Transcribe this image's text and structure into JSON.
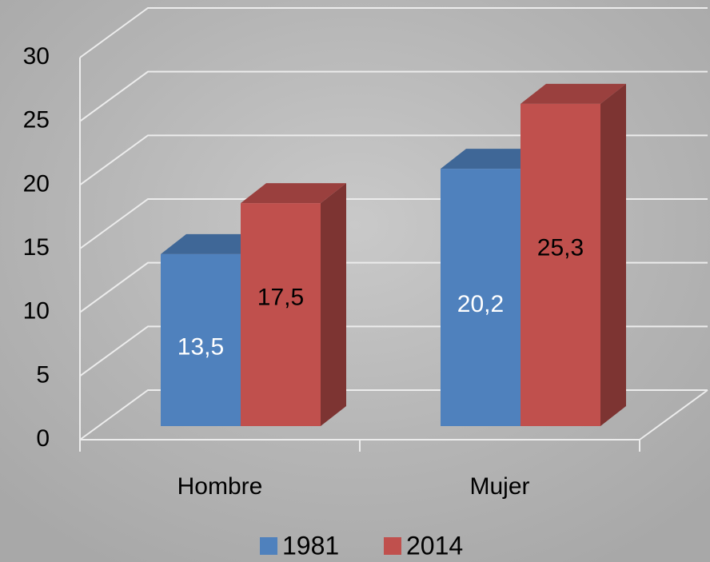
{
  "chart_data": {
    "type": "bar3d",
    "categories": [
      "Hombre",
      "Mujer"
    ],
    "series": [
      {
        "name": "1981",
        "color": "#4f81bd",
        "values": [
          13.5,
          20.2
        ],
        "value_labels": [
          "13,5",
          "20,2"
        ]
      },
      {
        "name": "2014",
        "color": "#c0504d",
        "values": [
          17.5,
          25.3
        ],
        "value_labels": [
          "17,5",
          "25,3"
        ]
      }
    ],
    "ylim": [
      0,
      30
    ],
    "yticks": [
      0,
      5,
      10,
      15,
      20,
      25,
      30
    ],
    "grid": true,
    "legend": "bottom"
  }
}
